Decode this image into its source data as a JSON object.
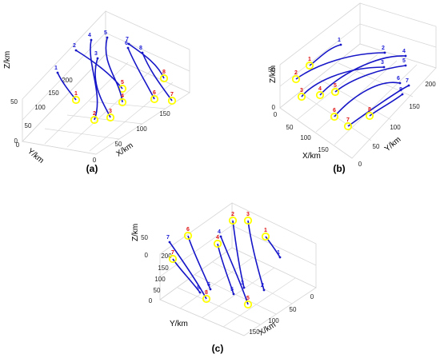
{
  "figure": {
    "panel_labels": [
      "(a)",
      "(b)",
      "(c)"
    ]
  },
  "chart_data": [
    {
      "type": "line",
      "panel": "(a)",
      "xlabel": "X/km",
      "ylabel": "Y/km",
      "zlabel": "Z/km",
      "x_ticks": [
        "0",
        "50",
        "100",
        "150"
      ],
      "y_ticks": [
        "0",
        "50",
        "100",
        "150",
        "200"
      ],
      "z_ticks": [
        "0",
        "50"
      ],
      "marker_color": "#ffff00",
      "line_color": "#1616c8",
      "start_label_color": "#1a1ad6",
      "end_label_color": "#e01010",
      "series": [
        {
          "start_label": "1",
          "end_label": "1"
        },
        {
          "start_label": "2",
          "end_label": "5"
        },
        {
          "start_label": "3",
          "end_label": "3"
        },
        {
          "start_label": "4",
          "end_label": "2"
        },
        {
          "start_label": "5",
          "end_label": "4"
        },
        {
          "start_label": "6",
          "end_label": "6"
        },
        {
          "start_label": "7",
          "end_label": "8"
        },
        {
          "start_label": "8",
          "end_label": "7"
        }
      ]
    },
    {
      "type": "line",
      "panel": "(b)",
      "xlabel": "X/km",
      "ylabel": "Y/km",
      "zlabel": "Z/km",
      "x_ticks": [
        "0",
        "50",
        "100",
        "150"
      ],
      "y_ticks": [
        "0",
        "50",
        "100",
        "150",
        "200"
      ],
      "z_ticks": [
        "0",
        "50"
      ],
      "marker_color": "#ffff00",
      "line_color": "#1616c8",
      "start_label_color": "#1a1ad6",
      "end_label_color": "#e01010",
      "series": [
        {
          "start_label": "1",
          "end_label": "1"
        },
        {
          "start_label": "2",
          "end_label": "2"
        },
        {
          "start_label": "3",
          "end_label": "3"
        },
        {
          "start_label": "4",
          "end_label": "4"
        },
        {
          "start_label": "5",
          "end_label": "5"
        },
        {
          "start_label": "6",
          "end_label": "6"
        },
        {
          "start_label": "7",
          "end_label": "7"
        },
        {
          "start_label": "8",
          "end_label": "8"
        }
      ]
    },
    {
      "type": "line",
      "panel": "(c)",
      "xlabel": "X/km",
      "ylabel": "Y/km",
      "zlabel": "Z/km",
      "x_ticks": [
        "0",
        "50",
        "100",
        "150"
      ],
      "y_ticks": [
        "0",
        "50",
        "100",
        "150",
        "200"
      ],
      "z_ticks": [
        "0",
        "50"
      ],
      "marker_color": "#ffff00",
      "line_color": "#1616c8",
      "start_label_color": "#1a1ad6",
      "end_label_color": "#e01010",
      "series": [
        {
          "start_label": "1",
          "end_label": "1"
        },
        {
          "start_label": "2",
          "end_label": "3"
        },
        {
          "start_label": "3",
          "end_label": "2"
        },
        {
          "start_label": "4",
          "end_label": "5"
        },
        {
          "start_label": "5",
          "end_label": "4"
        },
        {
          "start_label": "6",
          "end_label": "6"
        },
        {
          "start_label": "7",
          "end_label": "8"
        },
        {
          "start_label": "8",
          "end_label": "7"
        }
      ]
    }
  ]
}
